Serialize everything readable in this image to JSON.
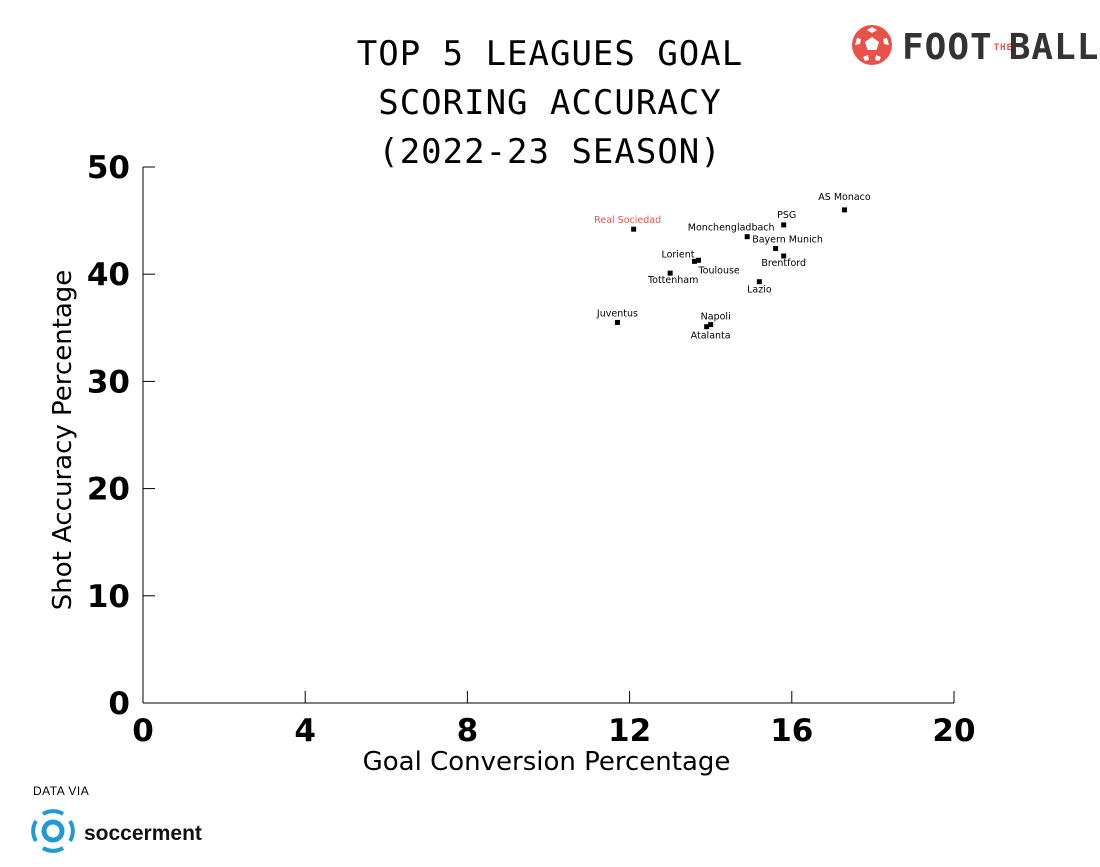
{
  "brand": {
    "logo_text": "FOOT",
    "logo_mid": "THE",
    "logo_end": "BALL",
    "icon": "football-icon",
    "accent": "#e8524a"
  },
  "source": {
    "label": "DATA VIA",
    "name": "soccerment",
    "icon": "soccerment-logo-icon",
    "color": "#1e9ad6"
  },
  "chart_data": {
    "type": "scatter",
    "title_lines": [
      "TOP 5 LEAGUES GOAL",
      "SCORING ACCURACY",
      "(2022-23 SEASON)"
    ],
    "xlabel": "Goal Conversion Percentage",
    "ylabel": "Shot Accuracy Percentage",
    "xlim": [
      0,
      20
    ],
    "ylim": [
      0,
      50
    ],
    "xticks": [
      0,
      4,
      8,
      12,
      16,
      20
    ],
    "yticks": [
      0,
      10,
      20,
      30,
      40,
      50
    ],
    "grid": false,
    "highlight_color": "#e8524a",
    "points": [
      {
        "name": "AS Monaco",
        "x": 17.3,
        "y": 46.0,
        "highlight": false
      },
      {
        "name": "PSG",
        "x": 15.8,
        "y": 44.6,
        "highlight": false
      },
      {
        "name": "Real Sociedad",
        "x": 12.1,
        "y": 44.2,
        "highlight": true
      },
      {
        "name": "Monchengladbach",
        "x": 14.9,
        "y": 43.5,
        "highlight": false
      },
      {
        "name": "Bayern Munich",
        "x": 15.6,
        "y": 42.4,
        "highlight": false
      },
      {
        "name": "Brentford",
        "x": 15.8,
        "y": 41.7,
        "highlight": false
      },
      {
        "name": "Lorient",
        "x": 13.7,
        "y": 41.3,
        "highlight": false
      },
      {
        "name": "Toulouse",
        "x": 13.6,
        "y": 41.2,
        "highlight": false
      },
      {
        "name": "Tottenham",
        "x": 13.0,
        "y": 40.1,
        "highlight": false
      },
      {
        "name": "Lazio",
        "x": 15.2,
        "y": 39.3,
        "highlight": false
      },
      {
        "name": "Juventus",
        "x": 11.7,
        "y": 35.5,
        "highlight": false
      },
      {
        "name": "Napoli",
        "x": 14.0,
        "y": 35.3,
        "highlight": false
      },
      {
        "name": "Atalanta",
        "x": 13.9,
        "y": 35.1,
        "highlight": false
      }
    ]
  }
}
